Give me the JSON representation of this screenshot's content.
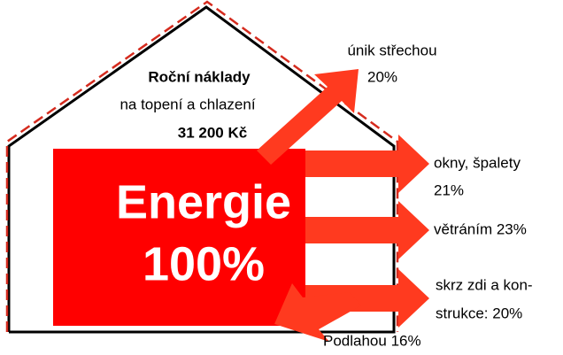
{
  "costs": {
    "title": "Roční náklady",
    "subtitle": "na topení a chlazení",
    "value": "31 200 Kč"
  },
  "energy": {
    "label": "Energie",
    "value": "100%"
  },
  "losses": [
    {
      "lines": [
        "únik střechou",
        "20%"
      ]
    },
    {
      "lines": [
        "okny, špalety",
        "21%"
      ]
    },
    {
      "lines": [
        "větráním 23%"
      ]
    },
    {
      "lines": [
        "skrz zdi a kon-",
        "strukce: 20%"
      ]
    },
    {
      "lines": [
        "Podlahou 16%"
      ]
    }
  ]
}
